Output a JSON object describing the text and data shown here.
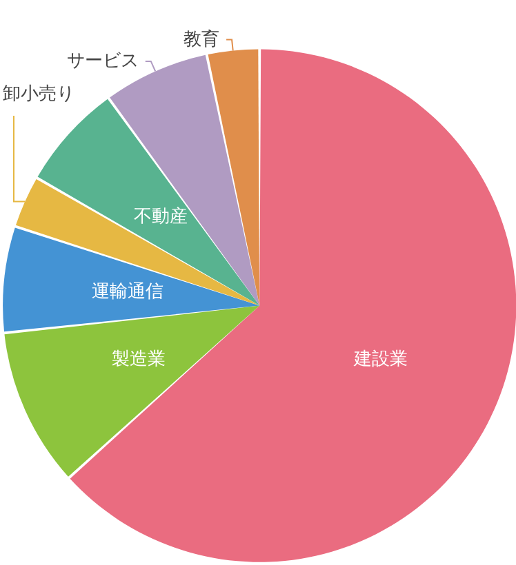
{
  "chart_data": {
    "type": "pie",
    "categories": [
      "建設業",
      "製造業",
      "運輸通信",
      "卸小売り",
      "不動産",
      "サービス",
      "教育"
    ],
    "values": [
      63.3,
      10,
      6.7,
      3.3,
      6.7,
      6.7,
      3.3
    ],
    "colors": [
      "#ea6c80",
      "#8dc43d",
      "#4493d4",
      "#e6b843",
      "#58b390",
      "#b09bc2",
      "#e08e4b"
    ]
  }
}
